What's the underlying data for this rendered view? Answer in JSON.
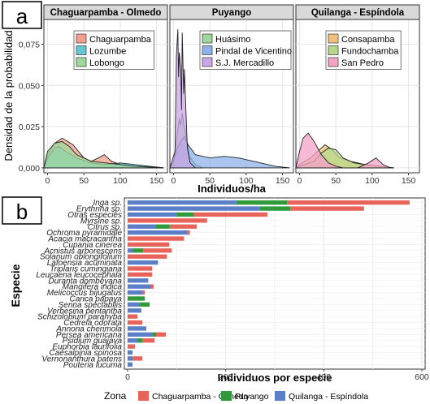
{
  "colors": {
    "chaguarpamba": "#e8645a",
    "puyango": "#2e9a3a",
    "quilanga": "#5b7fc7",
    "strip_bg": "#d9d9d9",
    "grid": "#e6e6e6"
  },
  "panel_a": {
    "label": "a",
    "xlabel": "Individuos/ha",
    "ylabel": "Densidad de la probabilidad",
    "yticks": [
      "0,000",
      "0,025",
      "0,050",
      "0,075"
    ],
    "xticks": [
      "0",
      "50",
      "100",
      "150"
    ]
  },
  "panel_b": {
    "label": "b",
    "xlabel": "Individuos por especie",
    "ylabel": "Especie",
    "xticks": [
      "0",
      "200",
      "400",
      "600"
    ],
    "legend_title": "Zona",
    "legend_items": [
      "Chaguarpamba - Olmedo",
      "Puyango",
      "Quilanga - Espíndola"
    ]
  },
  "chart_data": [
    {
      "type": "area",
      "subtype": "density",
      "facets": [
        {
          "title": "Chaguarpamba - Olmedo",
          "series": [
            {
              "name": "Chaguarpamba",
              "color": "#f2a08c",
              "peak_x": 20,
              "peak_y": 0.018
            },
            {
              "name": "Lozumbe",
              "color": "#66c7d2",
              "peak_x": 15,
              "peak_y": 0.013
            },
            {
              "name": "Lobongo",
              "color": "#9fd89a",
              "peak_x": 20,
              "peak_y": 0.016
            }
          ]
        },
        {
          "title": "Puyango",
          "series": [
            {
              "name": "Huásimo",
              "color": "#9fd89a",
              "peak_x": 12,
              "peak_y": 0.033
            },
            {
              "name": "Pindal de Vicentino",
              "color": "#8fb3e8",
              "peak_x": 15,
              "peak_y": 0.019
            },
            {
              "name": "S.J. Mercadillo",
              "color": "#c9a6e6",
              "peak_x": 12,
              "peak_y": 0.084
            }
          ]
        },
        {
          "title": "Quilanga - Espíndola",
          "series": [
            {
              "name": "Consapamba",
              "color": "#f2c27a",
              "peak_x": 35,
              "peak_y": 0.014
            },
            {
              "name": "Fundochamba",
              "color": "#b5d88a",
              "peak_x": 40,
              "peak_y": 0.012
            },
            {
              "name": "San Pedro",
              "color": "#f3a2c8",
              "peak_x": 12,
              "peak_y": 0.021
            }
          ]
        }
      ],
      "xlim": [
        -5,
        165
      ],
      "ylim": [
        -0.003,
        0.09
      ]
    },
    {
      "type": "bar",
      "orientation": "horizontal",
      "stacked": true,
      "categories": [
        "Inga sp.",
        "Erythrina sp.",
        "Otras especies",
        "Myrsine sp.",
        "Citrus sp.",
        "Ochroma pyramidale",
        "Acacia macracantha",
        "Cupania cinerea",
        "Acnistus arborescens",
        "Solanum oblongifolium",
        "Lafoensia acuminata",
        "Triplaris cumingiana",
        "Leucaena leucocephala",
        "Duranta dombeyana",
        "Mangifera indica",
        "Melicoccus bijugatus",
        "Carica papaya",
        "Senna spectabilis",
        "Verbesina pentantha",
        "Schizolobium parahyba",
        "Cedrela odorata",
        "Annona cherimola",
        "Persea americana",
        "Psidium guajava",
        "Euphorbia laurifolia",
        "Caesalpinia spinosa",
        "Vernonanthura patens",
        "Pouteria lucuma"
      ],
      "series": [
        {
          "name": "Quilanga - Espíndola",
          "values": [
            222,
            270,
            100,
            0,
            58,
            122,
            0,
            0,
            10,
            0,
            62,
            0,
            0,
            42,
            48,
            30,
            0,
            25,
            28,
            0,
            0,
            38,
            50,
            20,
            0,
            10,
            10,
            10
          ]
        },
        {
          "name": "Puyango",
          "values": [
            103,
            62,
            35,
            0,
            28,
            0,
            0,
            0,
            22,
            0,
            0,
            0,
            0,
            0,
            0,
            0,
            35,
            20,
            0,
            0,
            0,
            0,
            8,
            10,
            0,
            0,
            0,
            0
          ]
        },
        {
          "name": "Chaguarpamba - Olmedo",
          "values": [
            250,
            150,
            150,
            162,
            55,
            5,
            115,
            85,
            58,
            80,
            0,
            50,
            50,
            0,
            5,
            5,
            0,
            0,
            0,
            20,
            30,
            0,
            20,
            25,
            15,
            0,
            20,
            0
          ]
        }
      ],
      "xlim": [
        0,
        600
      ],
      "xlabel": "Individuos por especie",
      "ylabel": "Especie"
    }
  ]
}
